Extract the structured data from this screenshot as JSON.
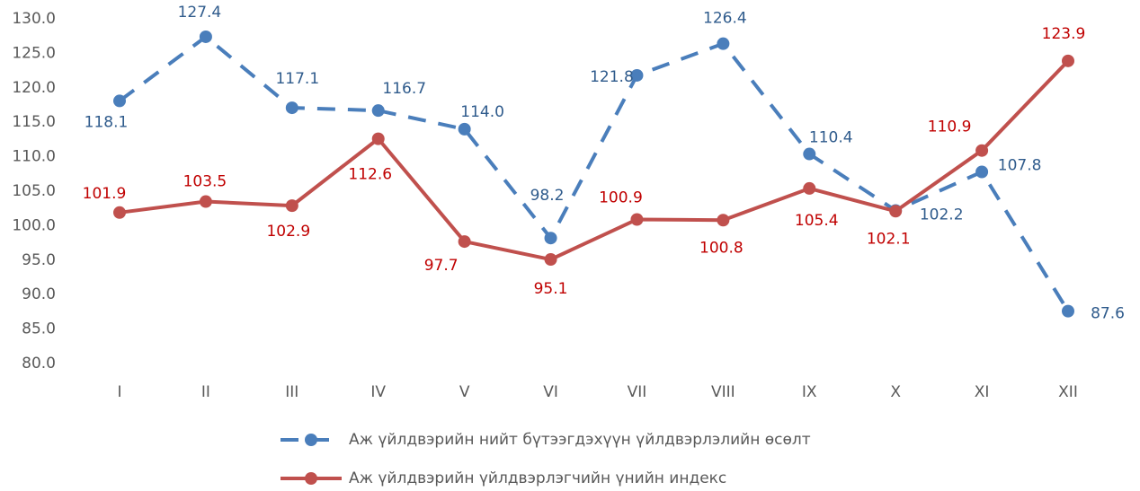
{
  "chart_data": {
    "type": "line",
    "categories": [
      "I",
      "II",
      "III",
      "IV",
      "V",
      "VI",
      "VII",
      "VIII",
      "IX",
      "X",
      "XI",
      "XII"
    ],
    "series": [
      {
        "name": "Аж үйлдвэрийн нийт бүтээгдэхүүн үйлдвэрлэлийн өсөлт",
        "color": "#4a7ebb",
        "label_color": "#2f5b8c",
        "dashed": true,
        "values": [
          118.1,
          127.4,
          117.1,
          116.7,
          114.0,
          98.2,
          121.8,
          126.4,
          110.4,
          102.2,
          107.8,
          87.6
        ],
        "value_labels": [
          "118.1",
          "127.4",
          "117.1",
          "116.7",
          "114.0",
          "98.2",
          "121.8",
          "126.4",
          "110.4",
          "102.2",
          "107.8",
          "87.6"
        ]
      },
      {
        "name": "Аж үйлдвэрийн үйлдвэрлэгчийн үнийн индекс",
        "color": "#c0504d",
        "label_color": "#c00000",
        "dashed": false,
        "values": [
          101.9,
          103.5,
          102.9,
          112.6,
          97.7,
          95.1,
          100.9,
          100.8,
          105.4,
          102.1,
          110.9,
          123.9
        ],
        "value_labels": [
          "101.9",
          "103.5",
          "102.9",
          "112.6",
          "97.7",
          "95.1",
          "100.9",
          "100.8",
          "105.4",
          "102.1",
          "110.9",
          "123.9"
        ]
      }
    ],
    "ylim": [
      80,
      130
    ],
    "yticks": [
      {
        "value": 80,
        "label": "80.0"
      },
      {
        "value": 85,
        "label": "85.0"
      },
      {
        "value": 90,
        "label": "90.0"
      },
      {
        "value": 95,
        "label": "95.0"
      },
      {
        "value": 100,
        "label": "100.0"
      },
      {
        "value": 105,
        "label": "105.0"
      },
      {
        "value": 110,
        "label": "110.0"
      },
      {
        "value": 115,
        "label": "115.0"
      },
      {
        "value": 120,
        "label": "120.0"
      },
      {
        "value": 125,
        "label": "125.0"
      },
      {
        "value": 130,
        "label": "130.0"
      }
    ],
    "grid": false,
    "legend": "bottom"
  }
}
